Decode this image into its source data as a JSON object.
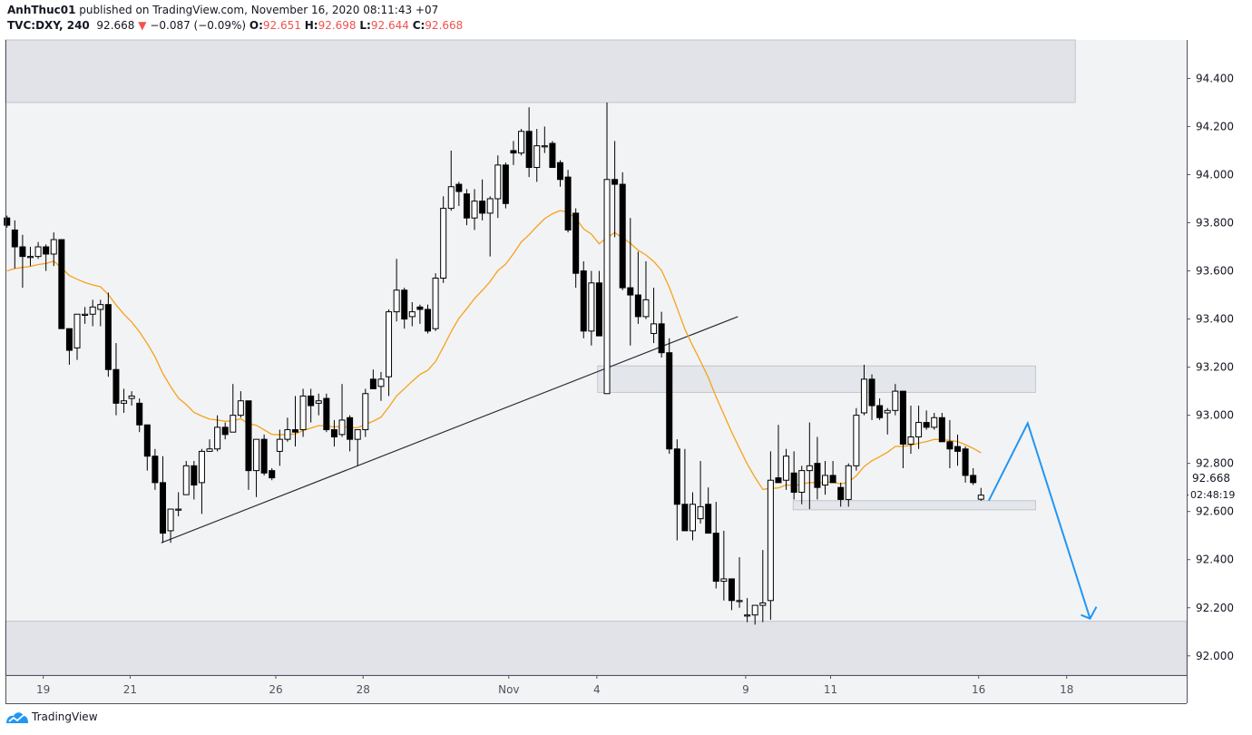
{
  "header": {
    "author": "AnhThuc01",
    "published_text": "published on TradingView.com, November 16, 2020 08:11:43 +07",
    "symbol": "TVC:DXY, 240",
    "last": "92.668",
    "change": "−0.087 (−0.09%)",
    "o_label": "O:",
    "o": "92.651",
    "h_label": "H:",
    "h": "92.698",
    "l_label": "L:",
    "l": "92.644",
    "c_label": "C:",
    "c": "92.668"
  },
  "price_axis": {
    "last_price_label": "92.668",
    "countdown": "02:48:19"
  },
  "logo": {
    "text": "TradingView"
  },
  "colors": {
    "down": "#ef5350",
    "ema": "#f7a21b",
    "arrow": "#2196f3",
    "zone": "#e1e3e8"
  },
  "chart_data": {
    "type": "candlestick",
    "title": "TVC:DXY, 240",
    "ylim": [
      91.92,
      94.56
    ],
    "yticks": [
      "92.000",
      "92.200",
      "92.400",
      "92.600",
      "92.800",
      "93.000",
      "93.200",
      "93.400",
      "93.600",
      "93.800",
      "94.000",
      "94.200",
      "94.400"
    ],
    "xticks": [
      {
        "label": "19",
        "index": 4.65
      },
      {
        "label": "21",
        "index": 15.8
      },
      {
        "label": "26",
        "index": 34.5
      },
      {
        "label": "28",
        "index": 45.7
      },
      {
        "label": "Nov",
        "index": 64.4
      },
      {
        "label": "4",
        "index": 75.7
      },
      {
        "label": "9",
        "index": 94.8
      },
      {
        "label": "11",
        "index": 105.7
      },
      {
        "label": "16",
        "index": 124.7
      },
      {
        "label": "18",
        "index": 136
      }
    ],
    "x_range_index": [
      -0.2,
      151.4
    ],
    "ema": {
      "period": 20,
      "seed": 93.58
    },
    "candles_ohlc": [
      [
        93.82,
        93.83,
        93.78,
        93.79
      ],
      [
        93.77,
        93.81,
        93.61,
        93.7
      ],
      [
        93.7,
        93.75,
        93.53,
        93.66
      ],
      [
        93.66,
        93.7,
        93.62,
        93.66
      ],
      [
        93.66,
        93.72,
        93.65,
        93.7
      ],
      [
        93.7,
        93.71,
        93.6,
        93.67
      ],
      [
        93.67,
        93.76,
        93.62,
        93.73
      ],
      [
        93.73,
        93.73,
        93.36,
        93.36
      ],
      [
        93.36,
        93.36,
        93.21,
        93.27
      ],
      [
        93.28,
        93.42,
        93.23,
        93.42
      ],
      [
        93.42,
        93.45,
        93.38,
        93.42
      ],
      [
        93.42,
        93.48,
        93.37,
        93.45
      ],
      [
        93.44,
        93.48,
        93.37,
        93.46
      ],
      [
        93.46,
        93.51,
        93.16,
        93.19
      ],
      [
        93.19,
        93.3,
        93.0,
        93.05
      ],
      [
        93.05,
        93.11,
        93.01,
        93.06
      ],
      [
        93.07,
        93.1,
        93.04,
        93.08
      ],
      [
        93.05,
        93.07,
        92.93,
        92.96
      ],
      [
        92.96,
        92.96,
        92.77,
        92.83
      ],
      [
        92.83,
        92.86,
        92.69,
        92.72
      ],
      [
        92.72,
        92.83,
        92.47,
        92.51
      ],
      [
        92.52,
        92.61,
        92.47,
        92.61
      ],
      [
        92.61,
        92.68,
        92.58,
        92.61
      ],
      [
        92.67,
        92.81,
        92.67,
        92.79
      ],
      [
        92.79,
        92.81,
        92.65,
        92.71
      ],
      [
        92.72,
        92.86,
        92.59,
        92.85
      ],
      [
        92.85,
        92.9,
        92.85,
        92.86
      ],
      [
        92.86,
        93.0,
        92.85,
        92.95
      ],
      [
        92.95,
        92.97,
        92.9,
        92.92
      ],
      [
        92.93,
        93.13,
        92.93,
        93.0
      ],
      [
        93.0,
        93.1,
        92.99,
        93.06
      ],
      [
        93.06,
        93.06,
        92.69,
        92.77
      ],
      [
        92.77,
        92.9,
        92.66,
        92.9
      ],
      [
        92.9,
        92.92,
        92.75,
        92.76
      ],
      [
        92.77,
        92.78,
        92.73,
        92.74
      ],
      [
        92.85,
        92.94,
        92.79,
        92.9
      ],
      [
        92.9,
        92.99,
        92.89,
        92.94
      ],
      [
        92.94,
        93.08,
        92.87,
        92.93
      ],
      [
        92.94,
        93.11,
        92.91,
        93.08
      ],
      [
        93.08,
        93.11,
        92.97,
        93.04
      ],
      [
        93.05,
        93.09,
        93.0,
        93.06
      ],
      [
        93.07,
        93.09,
        92.93,
        92.94
      ],
      [
        92.94,
        92.98,
        92.87,
        92.91
      ],
      [
        92.92,
        93.13,
        92.91,
        92.98
      ],
      [
        92.99,
        93.0,
        92.85,
        92.9
      ],
      [
        92.9,
        92.94,
        92.79,
        92.94
      ],
      [
        92.94,
        93.11,
        92.91,
        93.09
      ],
      [
        93.15,
        93.19,
        93.11,
        93.11
      ],
      [
        93.12,
        93.18,
        93.06,
        93.15
      ],
      [
        93.16,
        93.44,
        93.08,
        93.43
      ],
      [
        93.43,
        93.65,
        93.39,
        93.52
      ],
      [
        93.52,
        93.53,
        93.36,
        93.4
      ],
      [
        93.41,
        93.47,
        93.37,
        93.43
      ],
      [
        93.45,
        93.46,
        93.38,
        93.44
      ],
      [
        93.44,
        93.46,
        93.34,
        93.35
      ],
      [
        93.36,
        93.59,
        93.35,
        93.57
      ],
      [
        93.57,
        93.91,
        93.55,
        93.86
      ],
      [
        93.86,
        94.1,
        93.85,
        93.95
      ],
      [
        93.96,
        93.97,
        93.87,
        93.93
      ],
      [
        93.92,
        93.94,
        93.79,
        93.82
      ],
      [
        93.82,
        93.94,
        93.77,
        93.89
      ],
      [
        93.89,
        93.98,
        93.81,
        93.84
      ],
      [
        93.84,
        93.91,
        93.66,
        93.9
      ],
      [
        93.9,
        94.08,
        93.82,
        94.04
      ],
      [
        94.04,
        94.05,
        93.86,
        93.88
      ],
      [
        94.1,
        94.14,
        94.04,
        94.09
      ],
      [
        94.09,
        94.19,
        94.08,
        94.18
      ],
      [
        94.18,
        94.28,
        93.99,
        94.03
      ],
      [
        94.03,
        94.19,
        93.97,
        94.12
      ],
      [
        94.12,
        94.2,
        94.09,
        94.12
      ],
      [
        94.13,
        94.14,
        94.03,
        94.03
      ],
      [
        94.05,
        94.06,
        93.95,
        93.98
      ],
      [
        93.99,
        94.02,
        93.76,
        93.77
      ],
      [
        93.84,
        93.86,
        93.53,
        93.59
      ],
      [
        93.6,
        93.64,
        93.32,
        93.35
      ],
      [
        93.35,
        93.6,
        93.29,
        93.55
      ],
      [
        93.55,
        93.6,
        93.33,
        93.33
      ],
      [
        93.09,
        94.3,
        93.09,
        93.98
      ],
      [
        93.98,
        94.14,
        93.74,
        93.96
      ],
      [
        93.96,
        94.01,
        93.52,
        93.53
      ],
      [
        93.53,
        93.82,
        93.29,
        93.5
      ],
      [
        93.5,
        93.68,
        93.38,
        93.41
      ],
      [
        93.41,
        93.64,
        93.4,
        93.48
      ],
      [
        93.34,
        93.53,
        93.3,
        93.38
      ],
      [
        93.38,
        93.43,
        93.24,
        93.26
      ],
      [
        93.26,
        93.32,
        92.84,
        92.86
      ],
      [
        92.86,
        92.9,
        92.48,
        92.63
      ],
      [
        92.63,
        92.86,
        92.52,
        92.52
      ],
      [
        92.52,
        92.68,
        92.48,
        92.63
      ],
      [
        92.57,
        92.81,
        92.55,
        92.62
      ],
      [
        92.63,
        92.7,
        92.51,
        92.51
      ],
      [
        92.51,
        92.64,
        92.28,
        92.31
      ],
      [
        92.31,
        92.52,
        92.23,
        92.32
      ],
      [
        92.32,
        92.32,
        92.19,
        92.23
      ],
      [
        92.23,
        92.41,
        92.2,
        92.23
      ],
      [
        92.17,
        92.24,
        92.14,
        92.17
      ],
      [
        92.17,
        92.21,
        92.13,
        92.21
      ],
      [
        92.21,
        92.44,
        92.14,
        92.22
      ],
      [
        92.23,
        92.85,
        92.15,
        92.73
      ],
      [
        92.74,
        92.96,
        92.72,
        92.72
      ],
      [
        92.73,
        92.86,
        92.69,
        92.83
      ],
      [
        92.76,
        92.85,
        92.65,
        92.68
      ],
      [
        92.68,
        92.79,
        92.63,
        92.77
      ],
      [
        92.77,
        92.97,
        92.61,
        92.79
      ],
      [
        92.8,
        92.91,
        92.65,
        92.7
      ],
      [
        92.71,
        92.81,
        92.67,
        92.75
      ],
      [
        92.75,
        92.81,
        92.72,
        92.72
      ],
      [
        92.7,
        92.72,
        92.62,
        92.65
      ],
      [
        92.65,
        92.8,
        92.62,
        92.79
      ],
      [
        92.79,
        93.03,
        92.77,
        93.0
      ],
      [
        93.01,
        93.21,
        93.0,
        93.15
      ],
      [
        93.15,
        93.17,
        92.98,
        93.04
      ],
      [
        93.04,
        93.07,
        92.98,
        92.99
      ],
      [
        93.01,
        93.03,
        92.92,
        93.02
      ],
      [
        93.02,
        93.13,
        93.0,
        93.1
      ],
      [
        93.1,
        93.1,
        92.78,
        92.88
      ],
      [
        92.88,
        93.04,
        92.84,
        92.91
      ],
      [
        92.91,
        93.04,
        92.86,
        92.97
      ],
      [
        92.97,
        93.02,
        92.94,
        92.95
      ],
      [
        92.95,
        93.01,
        92.94,
        92.99
      ],
      [
        92.99,
        93.01,
        92.89,
        92.89
      ],
      [
        92.89,
        92.98,
        92.78,
        92.86
      ],
      [
        92.87,
        92.92,
        92.79,
        92.85
      ],
      [
        92.86,
        92.87,
        92.72,
        92.75
      ],
      [
        92.75,
        92.78,
        92.71,
        92.72
      ],
      [
        92.651,
        92.698,
        92.644,
        92.668
      ]
    ],
    "zones": [
      {
        "name": "supply-zone-top",
        "i0": -0.2,
        "i1": 137.1,
        "p_top": 94.56,
        "p_bottom": 94.3
      },
      {
        "name": "resistance-zone",
        "i0": 75.8,
        "i1": 132.0,
        "p_top": 93.205,
        "p_bottom": 93.095
      },
      {
        "name": "support-zone-small",
        "i0": 100.9,
        "i1": 132.0,
        "p_top": 92.645,
        "p_bottom": 92.607
      },
      {
        "name": "demand-zone-bottom",
        "i0": -0.2,
        "i1": 151.4,
        "p_top": 92.144,
        "p_bottom": 91.92
      }
    ],
    "trendline": {
      "i0": 19.8,
      "p0": 92.47,
      "i1": 93.8,
      "p1": 93.41
    },
    "projection_path": [
      {
        "i": 126.0,
        "p": 92.645
      },
      {
        "i": 131.0,
        "p": 92.967
      },
      {
        "i": 139.0,
        "p": 92.155
      }
    ]
  }
}
